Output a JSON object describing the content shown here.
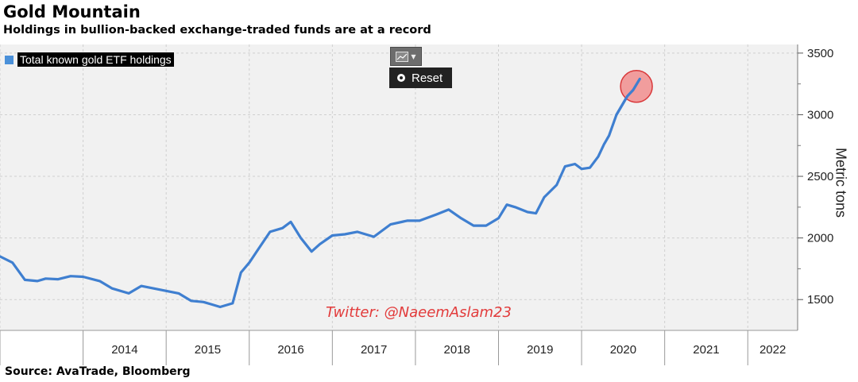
{
  "header": {
    "title": "Gold Mountain",
    "subtitle": "Holdings in bullion-backed exchange-traded funds are at a record"
  },
  "controls": {
    "reset_label": "Reset",
    "chart_type_icon": "line-chart-icon"
  },
  "watermark": "Twitter: @NaeemAslam23",
  "source": "Source: AvaTrade, Bloomberg",
  "colors": {
    "line": "#3f7fd0",
    "marker_fill": "#f08080",
    "marker_stroke": "#d9383a",
    "plot_bg": "#f1f1f1",
    "watermark": "#e23b3b"
  },
  "chart_data": {
    "type": "line",
    "title": "Gold Mountain",
    "subtitle": "Holdings in bullion-backed exchange-traded funds are at a record",
    "ylabel": "Metric tons",
    "xlim": [
      2013,
      2022.6
    ],
    "ylim": [
      1250,
      3570
    ],
    "yticks": [
      1500,
      2000,
      2500,
      3000,
      3500
    ],
    "year_labels": [
      "2014",
      "2015",
      "2016",
      "2017",
      "2018",
      "2019",
      "2020",
      "2021",
      "2022"
    ],
    "legend": {
      "placement": "top-left",
      "entries": [
        "Total known gold ETF holdings"
      ]
    },
    "grid": true,
    "series": [
      {
        "name": "Total known gold ETF holdings",
        "x": [
          2013.0,
          2013.15,
          2013.3,
          2013.45,
          2013.55,
          2013.7,
          2013.85,
          2014.0,
          2014.2,
          2014.35,
          2014.55,
          2014.7,
          2014.85,
          2015.0,
          2015.15,
          2015.3,
          2015.45,
          2015.55,
          2015.65,
          2015.8,
          2015.9,
          2016.0,
          2016.1,
          2016.25,
          2016.4,
          2016.5,
          2016.62,
          2016.75,
          2016.85,
          2017.0,
          2017.15,
          2017.3,
          2017.5,
          2017.7,
          2017.9,
          2018.05,
          2018.25,
          2018.4,
          2018.55,
          2018.7,
          2018.85,
          2019.0,
          2019.1,
          2019.2,
          2019.35,
          2019.45,
          2019.55,
          2019.7,
          2019.8,
          2019.92,
          2020.0,
          2020.1,
          2020.2,
          2020.27,
          2020.33,
          2020.42
        ],
        "values": [
          1850,
          1800,
          1660,
          1650,
          1670,
          1665,
          1690,
          1685,
          1650,
          1590,
          1550,
          1610,
          1590,
          1570,
          1550,
          1490,
          1480,
          1460,
          1440,
          1470,
          1720,
          1800,
          1900,
          2050,
          2080,
          2130,
          2000,
          1890,
          1950,
          2020,
          2030,
          2050,
          2010,
          2110,
          2140,
          2140,
          2190,
          2230,
          2160,
          2100,
          2100,
          2160,
          2270,
          2250,
          2210,
          2200,
          2330,
          2430,
          2580,
          2600,
          2560,
          2570,
          2660,
          2760,
          2830,
          3000
        ]
      }
    ],
    "extended_points": [
      {
        "x": 2020.55,
        "value": 3150
      },
      {
        "x": 2020.62,
        "value": 3200
      },
      {
        "x": 2020.7,
        "value": 3290
      }
    ],
    "highlight": {
      "x": 2020.66,
      "value": 3230
    }
  }
}
